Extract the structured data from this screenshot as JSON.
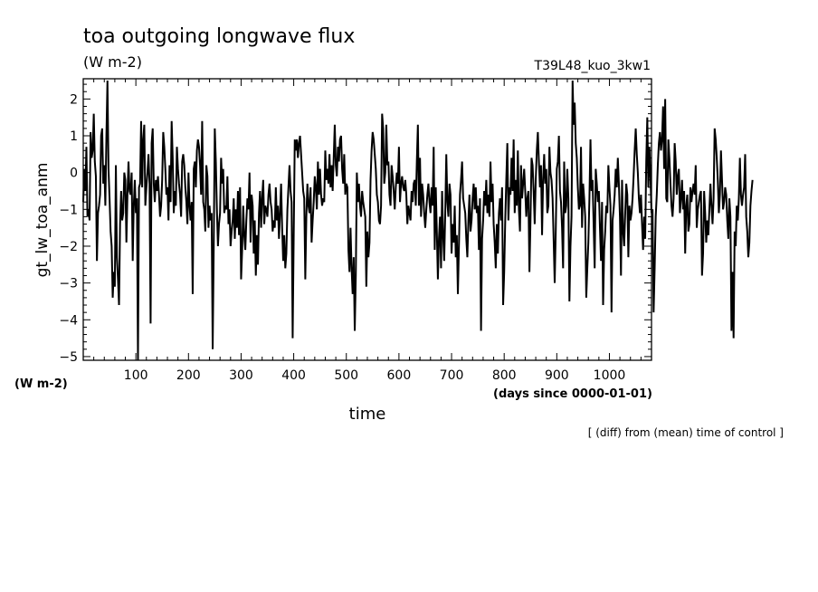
{
  "chart_data": {
    "type": "line",
    "title": "toa outgoing longwave flux",
    "subtitle": "(W m-2)",
    "run_label": "T39L48_kuo_3kw1",
    "ylabel": "gt_lw_toa_anm",
    "y_unit_label": "(W m-2)",
    "xlabel": "time",
    "x_unit_label": "(days since 0000-01-01)",
    "footnote": "[ (diff) from (mean) time of control ]",
    "xlim": [
      0,
      1080
    ],
    "ylim": [
      -5.1,
      2.55
    ],
    "x_ticks": [
      100,
      200,
      300,
      400,
      500,
      600,
      700,
      800,
      900,
      1000
    ],
    "y_ticks": [
      -5,
      -4,
      -3,
      -2,
      -1,
      0,
      1,
      2
    ],
    "grid": false,
    "line_color": "#000000",
    "series": [
      {
        "x_start": 0,
        "x_step": 2,
        "values": [
          -0.8,
          0.1,
          -0.5,
          0.7,
          -1.2,
          -1.0,
          -1.3,
          1.1,
          0.4,
          0.6,
          1.6,
          0.3,
          -0.1,
          -2.4,
          -1.1,
          -0.9,
          -0.6,
          1.0,
          1.2,
          -0.3,
          0.2,
          -0.9,
          1.0,
          2.5,
          0.1,
          -0.7,
          -1.6,
          -2.0,
          -3.4,
          -2.7,
          -3.1,
          0.2,
          -2.3,
          -2.9,
          -3.6,
          -1.4,
          -0.5,
          -1.3,
          -1.1,
          0.0,
          -0.2,
          -1.9,
          -0.6,
          0.3,
          -0.5,
          -0.6,
          0.0,
          -2.4,
          -0.9,
          -0.2,
          -1.1,
          -0.7,
          -5.1,
          -0.4,
          -0.3,
          1.4,
          -0.4,
          0.9,
          1.3,
          -0.9,
          -0.4,
          0.0,
          0.5,
          -0.3,
          -4.1,
          0.8,
          1.2,
          -0.3,
          -0.8,
          -0.2,
          -0.5,
          -0.1,
          -0.6,
          -1.2,
          -0.9,
          -0.2,
          1.1,
          0.7,
          0.1,
          -0.6,
          -0.4,
          -1.3,
          0.2,
          -0.8,
          1.4,
          0.4,
          -1.1,
          -0.5,
          -0.9,
          0.7,
          0.1,
          -0.3,
          -0.6,
          -1.2,
          0.3,
          0.5,
          0.2,
          -0.4,
          -0.8,
          -1.4,
          0.0,
          -0.9,
          -1.3,
          -0.8,
          -3.3,
          0.1,
          0.3,
          -0.4,
          0.6,
          0.9,
          0.7,
          0.2,
          -0.6,
          1.4,
          -0.8,
          -1.0,
          -1.6,
          0.2,
          -0.1,
          -1.5,
          -0.9,
          -1.3,
          -1.1,
          -4.8,
          -2.0,
          1.2,
          0.3,
          -1.0,
          -2.0,
          -1.4,
          -1.1,
          0.4,
          -0.3,
          0.1,
          -1.1,
          -0.9,
          -1.0,
          -0.1,
          -1.4,
          -1.0,
          -2.0,
          -1.6,
          -1.3,
          -0.7,
          -1.8,
          -1.0,
          -1.5,
          -0.5,
          -1.7,
          -0.4,
          -2.9,
          -2.1,
          -0.9,
          -1.7,
          -2.1,
          -1.3,
          -0.7,
          -1.0,
          0.0,
          -1.9,
          -0.6,
          -0.9,
          -2.2,
          -1.3,
          -2.8,
          -1.7,
          -2.5,
          -1.1,
          -0.5,
          -1.5,
          -0.7,
          -0.2,
          -1.4,
          -0.9,
          -1.0,
          -1.2,
          -0.6,
          -0.3,
          -0.8,
          -1.0,
          -1.6,
          -1.3,
          -1.5,
          -0.4,
          -1.3,
          -0.9,
          -1.8,
          -1.1,
          -0.3,
          -1.5,
          -2.4,
          -1.7,
          -2.6,
          -2.2,
          -1.0,
          -0.4,
          0.2,
          -0.5,
          -0.8,
          -4.5,
          -1.7,
          0.9,
          0.6,
          0.9,
          0.4,
          0.8,
          1.0,
          0.5,
          0.0,
          -0.5,
          -0.7,
          -2.9,
          -1.2,
          -0.3,
          -0.9,
          -1.1,
          -0.4,
          -1.9,
          -1.3,
          -0.8,
          -0.1,
          -0.4,
          -1.0,
          0.3,
          -0.6,
          0.1,
          -0.6,
          -0.9,
          -0.7,
          -0.8,
          0.6,
          -0.2,
          0.1,
          -0.3,
          0.5,
          -0.4,
          0.2,
          -0.5,
          0.4,
          1.3,
          0.2,
          -0.1,
          0.7,
          0.3,
          0.9,
          1.0,
          0.1,
          -0.3,
          0.5,
          -0.6,
          -0.3,
          -0.4,
          -2.1,
          -2.7,
          -1.5,
          -2.6,
          -3.3,
          -2.3,
          -4.3,
          -2.8,
          0.0,
          -0.8,
          -0.3,
          -0.9,
          -1.2,
          -0.5,
          -0.8,
          -1.0,
          -1.2,
          -3.1,
          -1.6,
          -2.3,
          -1.9,
          -0.2,
          0.6,
          1.1,
          0.9,
          0.5,
          0.1,
          -0.6,
          -0.8,
          -1.3,
          -1.4,
          -0.9,
          1.6,
          1.2,
          -0.3,
          0.0,
          1.3,
          0.2,
          0.3,
          -0.6,
          -0.9,
          0.2,
          -0.1,
          -0.5,
          -1.0,
          -0.4,
          0.0,
          -0.3,
          0.7,
          -0.8,
          -0.3,
          -0.1,
          -0.4,
          -0.5,
          -0.2,
          -0.6,
          -1.4,
          -0.9,
          -1.1,
          -1.3,
          -0.5,
          -0.8,
          -0.3,
          -0.2,
          -0.9,
          0.3,
          1.3,
          -0.9,
          0.4,
          -1.2,
          -0.3,
          -0.6,
          -1.1,
          -1.5,
          -1.0,
          -0.6,
          -0.3,
          -0.8,
          -1.1,
          -0.4,
          -0.9,
          0.7,
          -2.1,
          -0.4,
          -1.6,
          -2.9,
          -1.8,
          -1.2,
          -2.6,
          -0.5,
          -1.7,
          -2.4,
          -1.1,
          0.5,
          -0.8,
          -1.2,
          -0.3,
          -0.6,
          -2.2,
          -1.4,
          -1.9,
          -0.9,
          -2.3,
          -1.7,
          -3.3,
          -2.0,
          -0.6,
          -0.2,
          0.3,
          -0.7,
          -0.9,
          -1.1,
          -1.8,
          -2.3,
          -1.3,
          -0.6,
          -1.6,
          -1.3,
          -0.7,
          -0.3,
          -1.0,
          -0.4,
          -1.1,
          -0.9,
          -2.1,
          -0.7,
          -4.3,
          -1.8,
          -1.3,
          -0.5,
          -0.9,
          -0.2,
          -1.1,
          -0.6,
          -1.2,
          0.3,
          -0.8,
          -0.3,
          -1.4,
          -1.9,
          -2.6,
          -1.4,
          -2.2,
          -1.1,
          -0.7,
          -1.3,
          -0.4,
          -3.6,
          -2.7,
          -1.3,
          -0.2,
          0.8,
          -1.3,
          -0.4,
          -0.6,
          0.4,
          -0.5,
          0.9,
          -1.1,
          -0.2,
          -0.9,
          0.6,
          -1.0,
          -1.6,
          0.2,
          -0.7,
          -0.3,
          0.1,
          -0.5,
          -1.2,
          -0.7,
          -0.5,
          -2.7,
          -1.3,
          0.4,
          0.2,
          -0.5,
          -1.4,
          -0.2,
          0.6,
          1.1,
          0.3,
          -0.4,
          0.2,
          -1.7,
          -0.2,
          0.5,
          -0.3,
          0.1,
          -1.1,
          -0.9,
          0.7,
          0.0,
          -0.2,
          -0.7,
          -1.8,
          -3.0,
          -1.6,
          0.1,
          0.3,
          1.0,
          -0.5,
          -0.8,
          -1.5,
          -2.6,
          0.3,
          -1.1,
          -0.9,
          0.1,
          -0.7,
          -3.5,
          -2.0,
          -1.2,
          2.5,
          1.3,
          1.9,
          0.8,
          0.4,
          -0.4,
          -1.0,
          -0.9,
          0.7,
          -1.5,
          -0.3,
          -0.7,
          -1.2,
          -3.4,
          -2.6,
          -1.9,
          -0.7,
          0.9,
          -0.5,
          -0.2,
          -1.4,
          -2.6,
          0.1,
          -0.3,
          -0.8,
          -0.5,
          -1.5,
          -2.4,
          -0.8,
          -3.6,
          -2.1,
          -1.6,
          -0.9,
          -1.1,
          0.2,
          -0.4,
          -0.9,
          -3.8,
          -1.3,
          -1.0,
          -0.6,
          0.1,
          -0.4,
          0.4,
          -0.3,
          -1.2,
          -2.8,
          -0.2,
          -1.6,
          -2.0,
          -1.1,
          -0.3,
          -0.6,
          -2.3,
          -0.9,
          -1.3,
          -1.1,
          -0.7,
          -0.1,
          0.6,
          1.2,
          0.5,
          0.0,
          -0.7,
          -1.1,
          -0.6,
          -1.4,
          -2.1,
          -1.2,
          -1.8,
          0.3,
          1.5,
          -0.4,
          0.7,
          -0.1,
          -1.1,
          -1.0,
          -3.8,
          -2.6,
          -1.2,
          -0.6,
          0.2,
          0.8,
          1.1,
          0.6,
          0.9,
          1.8,
          0.1,
          2.0,
          -0.7,
          -0.8,
          0.9,
          0.4,
          -0.3,
          -0.9,
          -1.2,
          -0.7,
          0.8,
          0.3,
          -0.6,
          -0.1,
          0.1,
          -1.1,
          -0.7,
          -0.2,
          -1.0,
          -0.5,
          -2.2,
          -0.9,
          -0.6,
          -1.6,
          -1.4,
          -0.4,
          -0.8,
          -0.5,
          -0.3,
          -0.6,
          0.2,
          -1.5,
          -1.0,
          -0.8,
          -0.6,
          -0.5,
          -2.8,
          -2.2,
          -0.5,
          -1.1,
          -1.9,
          -1.3,
          -1.7,
          -1.0,
          -0.3,
          -0.9,
          -1.4,
          -0.7,
          1.2,
          0.9,
          0.4,
          -0.2,
          -1.1,
          -0.6,
          0.6,
          -0.2,
          -1.0,
          -0.8,
          -0.4,
          -0.6,
          -1.3,
          -1.8,
          -0.7,
          -1.2,
          -4.3,
          -2.7,
          -4.5,
          -1.6,
          -2.0,
          -0.9,
          -1.3,
          -0.7,
          0.4,
          -0.6,
          -0.9,
          -0.6,
          -0.4,
          0.5,
          -1.2,
          -1.6,
          -2.3,
          -1.9,
          -0.9,
          -0.5,
          -0.2
        ]
      }
    ]
  }
}
